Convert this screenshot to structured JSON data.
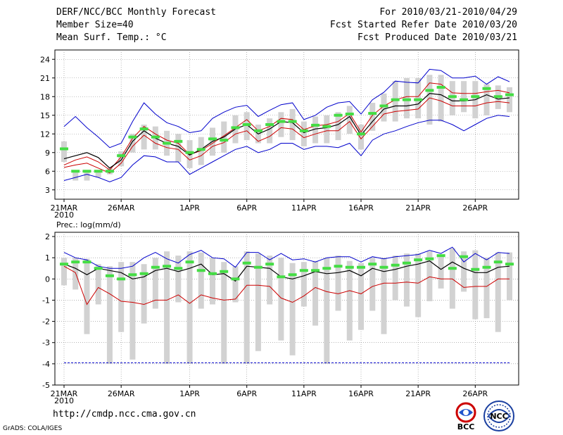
{
  "header": {
    "title": "DERF/NCC/BCC Monthly Forecast",
    "member_size": "Member Size=40",
    "variable": "Mean Surf. Temp.: °C",
    "period": "For 2010/03/21-2010/04/29",
    "started": "Fcst Started Refer Date 2010/03/20",
    "produced": "Fcst Produced Date 2010/03/21"
  },
  "footer": {
    "url": "http://cmdp.ncc.cma.gov.cn",
    "grads": "GrADS: COLA/IGES"
  },
  "logos": {
    "bcc": "BCC",
    "ncc": "NCC"
  },
  "colors": {
    "envelope": "#0000cc",
    "spread": "#cc0000",
    "mean": "#000000",
    "box": "#d2d2d2",
    "obs": "#44dd44",
    "grid": "#888888"
  },
  "chart_data": [
    {
      "type": "line",
      "title": "Mean Surf. Temp.: °C",
      "xlabel": "",
      "ylabel": "",
      "days": 40,
      "x_ticks": [
        {
          "day": 0,
          "label": "21MAR"
        },
        {
          "day": 5,
          "label": "26MAR"
        },
        {
          "day": 11,
          "label": "1APR"
        },
        {
          "day": 16,
          "label": "6APR"
        },
        {
          "day": 21,
          "label": "11APR"
        },
        {
          "day": 26,
          "label": "16APR"
        },
        {
          "day": 31,
          "label": "21APR"
        },
        {
          "day": 36,
          "label": "26APR"
        }
      ],
      "year_label": "2010",
      "ylim": [
        1.5,
        25.5
      ],
      "yticks": [
        3,
        6,
        9,
        12,
        15,
        18,
        21,
        24
      ],
      "series": [
        {
          "name": "max",
          "values": [
            13.2,
            14.8,
            13,
            11.5,
            9.8,
            10.5,
            14,
            17,
            15.2,
            13.8,
            13.2,
            12.2,
            12.5,
            14.5,
            15.5,
            16.3,
            16.6,
            14.8,
            15.8,
            16.7,
            17,
            14.3,
            15,
            16.3,
            17,
            17.2,
            15.2,
            17.5,
            18.7,
            20.5,
            20.3,
            20.2,
            22.4,
            22.2,
            21,
            21,
            21.3,
            20,
            21.2,
            20.4
          ]
        },
        {
          "name": "upper",
          "values": [
            7,
            7.8,
            8.3,
            7.5,
            6.2,
            8.3,
            11.3,
            13.2,
            12,
            11,
            10.5,
            8.7,
            9.3,
            10.5,
            11.7,
            13,
            14.3,
            12.5,
            13.2,
            14.5,
            14.3,
            12.7,
            13.3,
            13.5,
            14,
            15.3,
            12.3,
            15,
            16.5,
            17.5,
            18,
            18,
            20.2,
            20,
            18.6,
            18.5,
            18.5,
            18.8,
            19,
            18.6
          ]
        },
        {
          "name": "mean",
          "values": [
            8,
            8.5,
            9,
            8.2,
            6.5,
            7.8,
            10.8,
            12.5,
            11.3,
            10.5,
            10,
            8.6,
            9.5,
            10.8,
            11.5,
            12.8,
            13.5,
            12,
            12.8,
            14,
            13.8,
            12.2,
            12.8,
            13,
            13.5,
            14.8,
            11.8,
            14,
            16,
            16.5,
            16.5,
            16.8,
            18.5,
            18.3,
            17.3,
            17.3,
            17.5,
            18.3,
            17.6,
            17.8
          ]
        },
        {
          "name": "lower",
          "values": [
            6.6,
            7,
            7.3,
            6.5,
            5.7,
            7.3,
            10,
            11.8,
            10.5,
            9.8,
            9.5,
            7.8,
            8.5,
            10,
            10.6,
            12,
            12.5,
            10.8,
            11.6,
            13,
            12.8,
            11.4,
            12,
            12.5,
            12.5,
            14,
            11.2,
            13.2,
            15.2,
            15.6,
            15.8,
            16,
            17.8,
            17.3,
            16.5,
            16.5,
            16.5,
            17,
            17.2,
            17
          ]
        },
        {
          "name": "min",
          "values": [
            4.5,
            5,
            5.5,
            5,
            4.3,
            5,
            7,
            8.5,
            8.3,
            7.5,
            7.5,
            5.5,
            6.5,
            7.5,
            8.5,
            9.5,
            10,
            9,
            9.5,
            10.5,
            10.5,
            9.5,
            10,
            10,
            9.8,
            10.5,
            8.5,
            11,
            12,
            12.5,
            13.2,
            13.8,
            14.2,
            14.2,
            13.5,
            12.5,
            13.5,
            14.5,
            15,
            14.8
          ]
        },
        {
          "name": "obs",
          "values": [
            9.6,
            6,
            6,
            6,
            6,
            8.5,
            11.5,
            12.8,
            11.5,
            10.5,
            10.8,
            9,
            9.5,
            11.2,
            11,
            13,
            13.5,
            12.5,
            13.5,
            14,
            14,
            12.5,
            13.4,
            13.2,
            15,
            15.2,
            12,
            15.3,
            16.5,
            17.5,
            17.5,
            17.5,
            19,
            19.5,
            18,
            17.5,
            18,
            19.3,
            18,
            18.3
          ]
        },
        {
          "name": "box_top",
          "values": [
            10.8,
            6.2,
            6.2,
            6.2,
            6.5,
            9.2,
            12,
            13.5,
            13.2,
            12.5,
            12,
            11,
            11.5,
            13,
            14,
            15,
            15.5,
            13.5,
            14.5,
            15.5,
            16,
            14,
            14.8,
            15,
            15.5,
            16.5,
            13.5,
            17,
            18.5,
            20.5,
            21,
            21,
            21.5,
            21.5,
            20.5,
            20.5,
            20.5,
            20,
            19.8,
            19.5
          ]
        },
        {
          "name": "box_bottom",
          "values": [
            7.5,
            4.5,
            4.5,
            5,
            5.5,
            6.8,
            9,
            9.5,
            9.5,
            8.5,
            7.5,
            6.5,
            7,
            8.5,
            9,
            10.5,
            11,
            10.5,
            10.5,
            11.5,
            11,
            10,
            10.5,
            10.5,
            11,
            12,
            9.5,
            12.5,
            14,
            14,
            14.5,
            14.5,
            13.5,
            14,
            15,
            15.5,
            14.5,
            15,
            16,
            15.5
          ]
        }
      ]
    },
    {
      "type": "line",
      "title": "Prec.: log(mm/d)",
      "xlabel": "",
      "ylabel": "",
      "days": 40,
      "x_ticks": [
        {
          "day": 0,
          "label": "21MAR"
        },
        {
          "day": 5,
          "label": "26MAR"
        },
        {
          "day": 11,
          "label": "1APR"
        },
        {
          "day": 16,
          "label": "6APR"
        },
        {
          "day": 21,
          "label": "11APR"
        },
        {
          "day": 26,
          "label": "16APR"
        },
        {
          "day": 31,
          "label": "21APR"
        },
        {
          "day": 36,
          "label": "26APR"
        }
      ],
      "year_label": "2010",
      "ylim": [
        -5,
        2.2
      ],
      "yticks": [
        -5,
        -4,
        -3,
        -2,
        -1,
        0,
        1,
        2
      ],
      "series": [
        {
          "name": "max",
          "values": [
            1.25,
            1,
            0.9,
            0.6,
            0.5,
            0.5,
            0.6,
            1,
            1.25,
            0.95,
            0.75,
            1.15,
            1.35,
            1,
            0.95,
            0.55,
            1.25,
            1.25,
            0.9,
            1.2,
            0.9,
            0.95,
            0.8,
            1,
            1.05,
            1.05,
            0.8,
            1.05,
            0.95,
            1.05,
            1.1,
            1.15,
            1.35,
            1.2,
            1.5,
            0.8,
            1.2,
            0.9,
            1.25,
            1.2
          ]
        },
        {
          "name": "mean",
          "values": [
            0.7,
            0.5,
            0.2,
            0.5,
            0.4,
            0.3,
            0,
            0.1,
            0.4,
            0.5,
            0.35,
            0.5,
            0.7,
            0.2,
            0.25,
            -0.1,
            0.6,
            0.55,
            0.5,
            0.1,
            0,
            0.15,
            0.35,
            0.25,
            0.3,
            0.4,
            0.15,
            0.5,
            0.35,
            0.45,
            0.6,
            0.7,
            0.85,
            0.45,
            0.8,
            0.5,
            0.3,
            0.3,
            0.55,
            0.6
          ]
        },
        {
          "name": "lower",
          "values": [
            0.6,
            0.3,
            -1.2,
            -0.4,
            -0.7,
            -1.05,
            -1.1,
            -1.2,
            -1,
            -1,
            -0.75,
            -1.15,
            -0.75,
            -0.9,
            -1,
            -0.95,
            -0.3,
            -0.3,
            -0.35,
            -0.9,
            -1.1,
            -0.8,
            -0.4,
            -0.6,
            -0.7,
            -0.55,
            -0.7,
            -0.35,
            -0.2,
            -0.2,
            -0.15,
            -0.2,
            0.1,
            0,
            0,
            -0.4,
            -0.35,
            -0.35,
            0,
            0
          ]
        },
        {
          "name": "floor",
          "values": [
            -3.95,
            -3.95,
            -3.95,
            -3.95,
            -3.95,
            -3.95,
            -3.95,
            -3.95,
            -3.95,
            -3.95,
            -3.95,
            -3.95,
            -3.95,
            -3.95,
            -3.95,
            -3.95,
            -3.95,
            -3.95,
            -3.95,
            -3.95,
            -3.95,
            -3.95,
            -3.95,
            -3.95,
            -3.95,
            -3.95,
            -3.95,
            -3.95,
            -3.95,
            -3.95,
            -3.95,
            -3.95,
            -3.95,
            -3.95,
            -3.95,
            -3.95,
            -3.95,
            -3.95,
            -3.95,
            -3.95
          ]
        },
        {
          "name": "obs",
          "values": [
            0.7,
            0.8,
            0.8,
            0.5,
            0.15,
            0,
            0.2,
            0.25,
            0.55,
            0.6,
            0.5,
            0.8,
            0.4,
            0.25,
            0.35,
            0,
            0.75,
            0.55,
            0.7,
            0.1,
            0.2,
            0.4,
            0.4,
            0.5,
            0.6,
            0.55,
            0.55,
            0.7,
            0.55,
            0.65,
            0.75,
            0.9,
            0.95,
            1.1,
            0.5,
            1.05,
            0.45,
            0.55,
            0.8,
            0.7
          ]
        },
        {
          "name": "box_top",
          "values": [
            1,
            1,
            0.95,
            0.7,
            0.6,
            0.8,
            0.8,
            0.7,
            1,
            1.3,
            1.1,
            1.3,
            1.25,
            1,
            0.8,
            0.6,
            1.3,
            1.2,
            1.1,
            1,
            0.75,
            0.8,
            0.85,
            1,
            1.1,
            0.85,
            0.75,
            1,
            1,
            1.1,
            1.2,
            1.2,
            1.3,
            1.1,
            1.45,
            1.3,
            1.35,
            1,
            1.25,
            1.25
          ]
        },
        {
          "name": "box_bottom",
          "values": [
            -0.3,
            -0.5,
            -2.6,
            -1.2,
            -4,
            -2.5,
            -3.8,
            -2.1,
            -1.4,
            -4,
            -1.1,
            -4,
            -1.4,
            -1.2,
            -4,
            -1.1,
            -4,
            -3.4,
            -1.2,
            -2.9,
            -3.6,
            -1.3,
            -2.2,
            -4,
            -1.5,
            -2.9,
            -2.4,
            -1.5,
            -2.6,
            -1,
            -1.3,
            -1.8,
            -1.05,
            -0.45,
            -1.4,
            -0.6,
            -1.9,
            -1.85,
            -2.5,
            -1
          ]
        }
      ]
    }
  ]
}
